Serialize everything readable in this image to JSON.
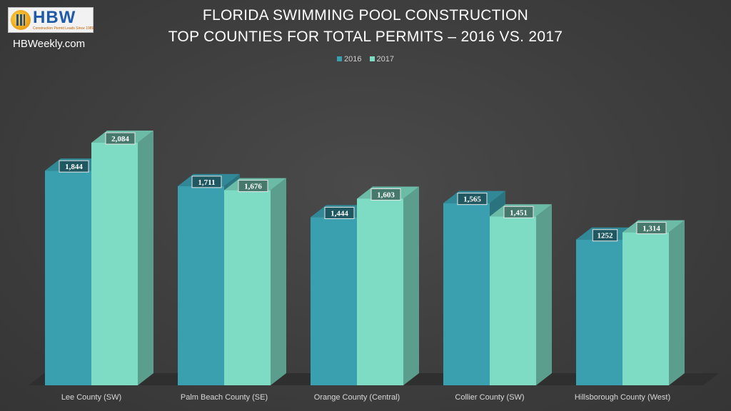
{
  "header": {
    "logo_text": "HBW",
    "logo_tagline": "Construction Permit Leads Since 1989",
    "site": "HBWeekly.com"
  },
  "chart_data": {
    "type": "bar",
    "title_line1": "FLORIDA SWIMMING POOL CONSTRUCTION",
    "title_line2": "TOP COUNTIES FOR TOTAL PERMITS – 2016 VS. 2017",
    "categories": [
      "Lee County (SW)",
      "Palm Beach County (SE)",
      "Orange County (Central)",
      "Collier County (SW)",
      "Hillsborough County (West)"
    ],
    "series": [
      {
        "name": "2016",
        "values": [
          1844,
          1711,
          1444,
          1565,
          1252
        ],
        "labels": [
          "1,844",
          "1,711",
          "1,444",
          "1,565",
          "1252"
        ],
        "color": "#3aa0b0"
      },
      {
        "name": "2017",
        "values": [
          2084,
          1676,
          1603,
          1451,
          1314
        ],
        "labels": [
          "2,084",
          "1,676",
          "1,603",
          "1,451",
          "1,314"
        ],
        "color": "#7fdcc4"
      }
    ],
    "legend_position": "top-center",
    "grid": false,
    "ylim": [
      0,
      2400
    ]
  }
}
